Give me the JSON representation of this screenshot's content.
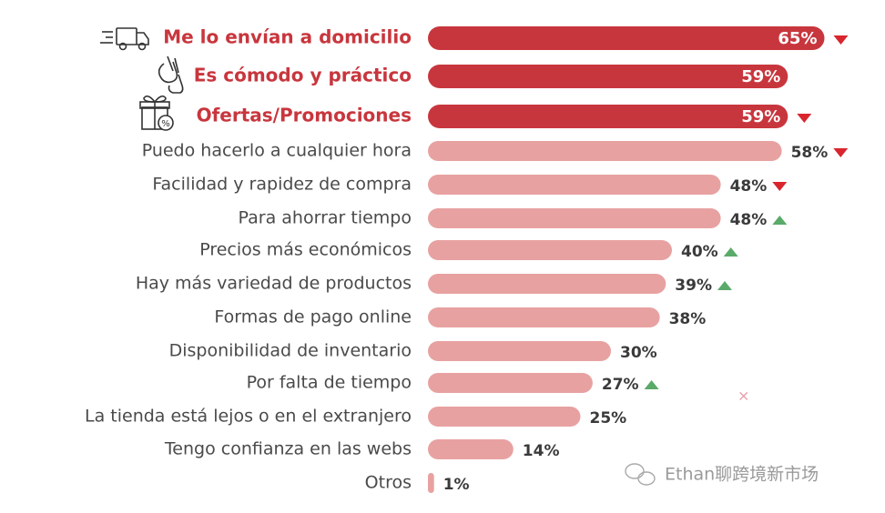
{
  "chart_data": {
    "type": "bar",
    "orientation": "horizontal",
    "categories": [
      "Me lo envían a domicilio",
      "Es cómodo y práctico",
      "Ofertas/Promociones",
      "Puedo hacerlo a cualquier hora",
      "Facilidad y rapidez de compra",
      "Para ahorrar tiempo",
      "Precios más económicos",
      "Hay más variedad de productos",
      "Formas de pago online",
      "Disponibilidad de inventario",
      "Por falta de tiempo",
      "La tienda está lejos o en el extranjero",
      "Tengo confianza en las webs",
      "Otros"
    ],
    "values": [
      65,
      59,
      59,
      58,
      48,
      48,
      40,
      39,
      38,
      30,
      27,
      25,
      14,
      1
    ],
    "value_labels": [
      "65%",
      "59%",
      "59%",
      "58%",
      "48%",
      "48%",
      "40%",
      "39%",
      "38%",
      "30%",
      "27%",
      "25%",
      "14%",
      "1%"
    ],
    "highlighted": [
      true,
      true,
      true,
      false,
      false,
      false,
      false,
      false,
      false,
      false,
      false,
      false,
      false,
      false
    ],
    "trends": [
      "down",
      null,
      "down",
      "down",
      "down",
      "up",
      "up",
      "up",
      null,
      null,
      "up",
      null,
      null,
      null
    ],
    "color": "#e8a1a1",
    "highlight_color": "#c8363d",
    "down_color": "#d9262e",
    "up_color": "#5aaa6a"
  },
  "watermark": "Ethan聊跨境新市场"
}
